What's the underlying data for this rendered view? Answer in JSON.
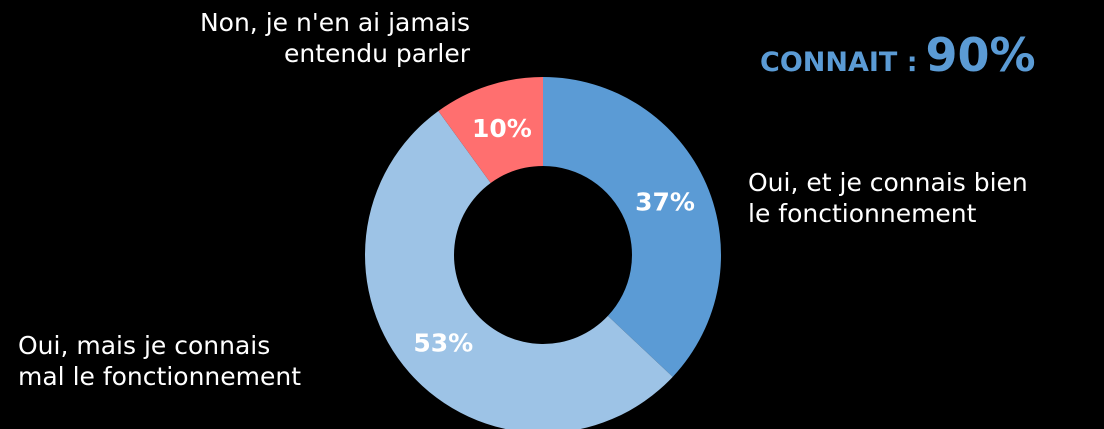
{
  "chart_data": {
    "type": "pie",
    "variant": "donut",
    "categories": [
      "Oui, et je connais bien le fonctionnement",
      "Oui, mais je connais mal le fonctionnement",
      "Non, je n'en ai jamais entendu parler"
    ],
    "values": [
      37,
      53,
      10
    ],
    "data_labels": [
      "37%",
      "53%",
      "10%"
    ],
    "colors": [
      "#5b9bd5",
      "#9dc3e6",
      "#ff6f6f"
    ],
    "start_angle_deg": 0,
    "direction": "clockwise"
  },
  "labels": {
    "non": [
      "Non, je n'en ai jamais",
      "entendu parler"
    ],
    "oui_bien": [
      "Oui, et je connais bien",
      "le fonctionnement"
    ],
    "oui_mal": [
      "Oui, mais je connais",
      "mal le fonctionnement"
    ]
  },
  "headline": {
    "label": "CONNAIT :",
    "value": "90%",
    "color": "#5b9bd5"
  },
  "colors": {
    "background": "#000000",
    "text": "#ffffff"
  }
}
